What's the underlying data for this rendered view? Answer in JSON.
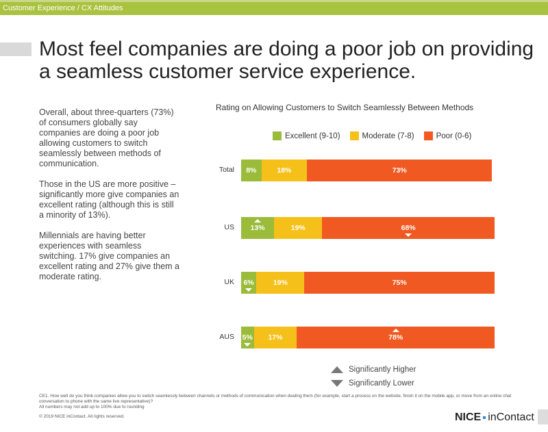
{
  "header": {
    "breadcrumb": "Customer Experience / CX Attitudes"
  },
  "title": "Most feel companies are doing a poor job on providing a seamless customer service experience.",
  "body": [
    "Overall, about three-quarters (73%) of consumers globally say companies are doing a poor job allowing customers to switch seamlessly between methods of communication.",
    "Those in the US are more positive – significantly more give companies an excellent rating (although this is still a minority of 13%).",
    "Millennials are having better experiences with seamless switching. 17% give companies an excellent rating and 27% give them a moderate rating."
  ],
  "chart_data": {
    "type": "bar",
    "orientation": "horizontal",
    "stacked": true,
    "title": "Rating on Allowing Customers to Switch Seamlessly Between Methods",
    "categories": [
      "Total",
      "US",
      "UK",
      "AUS"
    ],
    "series": [
      {
        "name": "Excellent (9-10)",
        "color": "#9bbb3b",
        "values": [
          8,
          13,
          6,
          5
        ],
        "labels": [
          "8%",
          "13%",
          "6%",
          "5%"
        ],
        "significance": [
          null,
          "higher",
          "lower",
          "lower"
        ]
      },
      {
        "name": "Moderate (7-8)",
        "color": "#f6c01b",
        "values": [
          18,
          19,
          19,
          17
        ],
        "labels": [
          "18%",
          "19%",
          "19%",
          "17%"
        ],
        "significance": [
          null,
          null,
          null,
          null
        ]
      },
      {
        "name": "Poor (0-6)",
        "color": "#f05a22",
        "values": [
          73,
          68,
          75,
          78
        ],
        "labels": [
          "73%",
          "68%",
          "75%",
          "78%"
        ],
        "significance": [
          null,
          "lower",
          null,
          "higher"
        ]
      }
    ],
    "legend_position": "top",
    "grid": false
  },
  "significance_legend": {
    "higher": "Significantly Higher",
    "lower": "Significantly Lower"
  },
  "footnote": {
    "question": "CE1. How well do you think companies allow you to switch seamlessly between channels or methods of communication when dealing them (for example, start a process on the website, finish it on the mobile app, or move from an online chat conversation to phone with the same live representative)?",
    "rounding": "All numbers may not add up to 100% due to rounding",
    "copyright": "© 2019 NICE inContact. All rights reserved."
  },
  "logo": {
    "part1": "NICE",
    "part2": "inContact"
  }
}
